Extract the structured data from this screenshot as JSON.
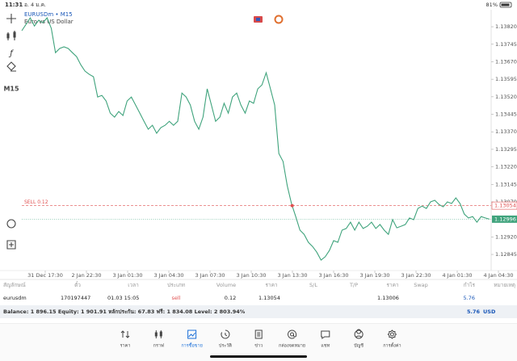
{
  "status_bar": {
    "time": "11:31",
    "date": "อ. 4 ม.ค.",
    "battery": "81%"
  },
  "toolbar": {
    "timeframe": "M15"
  },
  "chart_data": {
    "type": "line",
    "title": "EURUSDm • M15",
    "subtitle": "Euro vs US Dollar",
    "color": "#3fa37c",
    "xtick_labels": [
      "31 Dec 17:30",
      "2 Jan 22:30",
      "3 Jan 01:30",
      "3 Jan 04:30",
      "3 Jan 07:30",
      "3 Jan 10:30",
      "3 Jan 13:30",
      "3 Jan 16:30",
      "3 Jan 19:30",
      "3 Jan 22:30",
      "4 Jan 01:30",
      "4 Jan 04:30"
    ],
    "values": [
      1.13803,
      1.1383,
      1.13858,
      1.13823,
      1.13848,
      1.13837,
      1.13858,
      1.13813,
      1.13709,
      1.13727,
      1.13734,
      1.13727,
      1.13709,
      1.13692,
      1.13657,
      1.1363,
      1.13616,
      1.13606,
      1.13519,
      1.13526,
      1.13502,
      1.1345,
      1.13433,
      1.13457,
      1.1344,
      1.13502,
      1.13519,
      1.13485,
      1.1345,
      1.13415,
      1.13381,
      1.13398,
      1.13364,
      1.13388,
      1.13398,
      1.13415,
      1.13398,
      1.13415,
      1.13536,
      1.13519,
      1.13485,
      1.13415,
      1.13381,
      1.13433,
      1.13554,
      1.13485,
      1.13415,
      1.13433,
      1.13492,
      1.1345,
      1.13519,
      1.13536,
      1.13485,
      1.1345,
      1.13502,
      1.13492,
      1.13554,
      1.13571,
      1.13623,
      1.13554,
      1.13485,
      1.13277,
      1.13243,
      1.13139,
      1.13063,
      1.13007,
      1.12949,
      1.12931,
      1.12897,
      1.12879,
      1.12855,
      1.12821,
      1.12835,
      1.12862,
      1.12904,
      1.12897,
      1.12949,
      1.12956,
      1.12983,
      1.12949,
      1.12983,
      1.12956,
      1.12966,
      1.12983,
      1.12956,
      1.12973,
      1.12949,
      1.12931,
      1.12994,
      1.12959,
      1.12966,
      1.12973,
      1.13001,
      1.12994,
      1.13042,
      1.13052,
      1.13042,
      1.1307,
      1.13077,
      1.13059,
      1.13049,
      1.1307,
      1.13063,
      1.13087,
      1.13063,
      1.13018,
      1.13001,
      1.13007,
      1.12983,
      1.13007,
      1.13001,
      1.12996
    ],
    "ylim": [
      1.12776,
      1.13886
    ],
    "yticks": [
      {
        "value": 1.1382,
        "label": "1.13820"
      },
      1.13745,
      {
        "value": 1.1367,
        "label": "1.13670"
      },
      1.13595,
      {
        "value": 1.1352,
        "label": "1.13520"
      },
      1.13445,
      {
        "value": 1.1337,
        "label": "1.13370"
      },
      1.13295,
      {
        "value": 1.1322,
        "label": "1.13220"
      },
      1.13145,
      {
        "value": 1.1307,
        "label": "1.13070"
      },
      {
        "value": 1.1292,
        "label": "1.12920"
      },
      1.12845
    ],
    "sell_line": {
      "label": "SELL 0.12",
      "price": 1.13054,
      "color": "#e05050"
    },
    "current_price": 1.12996
  },
  "positions": {
    "columns": [
      "สัญลักษณ์",
      "ตั๋ว",
      "เวลา",
      "ประเภท",
      "Volume",
      "ราคา",
      "S/L",
      "T/P",
      "ราคา",
      "Swap",
      "กำไร",
      "หมายเหตุ"
    ],
    "rows": [
      [
        "eurusdm",
        "170197447",
        "01.03 15:05",
        "sell",
        "0.12",
        "1.13054",
        null,
        null,
        "1.13006",
        null,
        "5.76",
        null
      ]
    ]
  },
  "summary": {
    "text": "Balance: 1 896.15 Equity: 1 901.91 หลักประกัน: 67.83 ฟรี: 1 834.08 Level: 2 803.94%",
    "profit": "5.76",
    "currency": "USD"
  },
  "nav": {
    "items": [
      "ราคา",
      "กราฟ",
      "การซื้อขาย",
      "ประวัติ",
      "ข่าว",
      "กล่องจดหมาย",
      "แชท",
      "บัญชี",
      "การตั้งค่า"
    ],
    "active": 2
  }
}
